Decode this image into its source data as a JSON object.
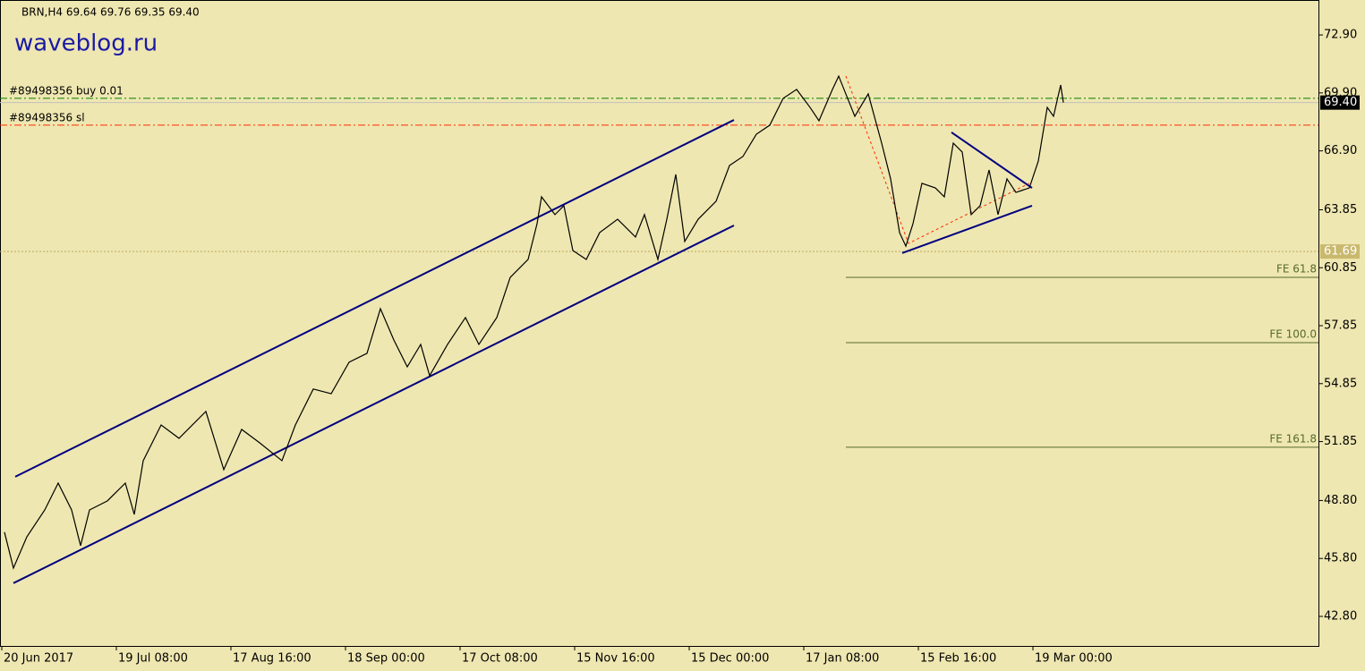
{
  "chart_data": {
    "type": "line",
    "title": "BRN,H4  69.64 69.76 69.35 69.40",
    "watermark": "waveblog.ru",
    "color": "#000000",
    "x": [
      5,
      15,
      30,
      50,
      65,
      80,
      90,
      100,
      120,
      140,
      150,
      160,
      180,
      200,
      230,
      250,
      270,
      290,
      315,
      330,
      350,
      370,
      390,
      410,
      425,
      440,
      455,
      470,
      480,
      500,
      520,
      535,
      555,
      570,
      590,
      600,
      605,
      620,
      630,
      640,
      655,
      670,
      690,
      710,
      720,
      735,
      745,
      755,
      765,
      780,
      800,
      815,
      830,
      845,
      860,
      875,
      890,
      905,
      915,
      930,
      937,
      955,
      970,
      985,
      995,
      1005,
      1012,
      1020,
      1030,
      1045,
      1055,
      1065,
      1075,
      1085,
      1095,
      1105,
      1115,
      1125,
      1135,
      1150,
      1160,
      1170,
      1177,
      1185,
      1188
    ],
    "values": [
      47.16,
      45.3,
      46.92,
      48.31,
      49.7,
      48.31,
      46.46,
      48.31,
      48.78,
      49.7,
      48.08,
      50.86,
      52.71,
      52.02,
      53.41,
      50.4,
      52.48,
      51.79,
      50.86,
      52.71,
      54.57,
      54.33,
      55.96,
      56.42,
      58.73,
      57.11,
      55.72,
      56.88,
      55.26,
      56.88,
      58.27,
      56.88,
      58.27,
      60.35,
      61.28,
      63.13,
      64.52,
      63.6,
      64.06,
      61.74,
      61.28,
      62.67,
      63.36,
      62.44,
      63.6,
      61.28,
      63.36,
      65.68,
      62.21,
      63.36,
      64.29,
      66.14,
      66.61,
      67.76,
      68.23,
      69.62,
      70.08,
      69.15,
      68.46,
      70.08,
      70.77,
      68.69,
      69.85,
      67.3,
      65.45,
      62.67,
      61.97,
      63.13,
      65.22,
      64.98,
      64.52,
      67.3,
      66.84,
      63.6,
      64.06,
      65.91,
      63.6,
      65.45,
      64.75,
      64.98,
      66.37,
      69.15,
      68.69,
      70.31,
      69.4
    ],
    "xlim": [
      0,
      1473
    ],
    "ylim": [
      41.27,
      74.71
    ],
    "xticks": [
      {
        "value": 2,
        "label": "20 Jun 2017"
      },
      {
        "value": 130,
        "label": "19 Jul 08:00"
      },
      {
        "value": 258,
        "label": "17 Aug 16:00"
      },
      {
        "value": 386,
        "label": "18 Sep 00:00"
      },
      {
        "value": 514,
        "label": "17 Oct 08:00"
      },
      {
        "value": 642,
        "label": "15 Nov 16:00"
      },
      {
        "value": 770,
        "label": "15 Dec 00:00"
      },
      {
        "value": 898,
        "label": "17 Jan 08:00"
      },
      {
        "value": 1026,
        "label": "15 Feb 16:00"
      },
      {
        "value": 1154,
        "label": "19 Mar 00:00"
      }
    ],
    "yticks": [
      {
        "value": 72.9,
        "label": "72.90"
      },
      {
        "value": 69.9,
        "label": "69.90"
      },
      {
        "value": 66.9,
        "label": "66.90"
      },
      63.85,
      60.85,
      57.85,
      54.85,
      51.85,
      {
        "value": 48.8,
        "label": "48.80"
      },
      {
        "value": 45.8,
        "label": "45.80"
      },
      {
        "value": 42.8,
        "label": "42.80"
      }
    ],
    "trendlines": [
      {
        "x": [
          17,
          820
        ],
        "y": [
          50.03,
          68.5
        ],
        "color": "#000080"
      },
      {
        "x": [
          15,
          820
        ],
        "y": [
          44.52,
          63.04
        ],
        "color": "#000080"
      },
      {
        "x": [
          1063,
          1153
        ],
        "y": [
          67.86,
          64.98
        ],
        "color": "#000080"
      },
      {
        "x": [
          1008,
          1153
        ],
        "y": [
          61.61,
          64.06
        ],
        "color": "#000080"
      }
    ],
    "zigzag": {
      "x": [
        945,
        1015,
        1150
      ],
      "y": [
        70.77,
        62.11,
        65.22
      ],
      "color": "#ff2a00"
    },
    "levels": [
      {
        "label": "#89498356 buy 0.01",
        "value": 69.62,
        "color": "#008000"
      },
      {
        "label": "#89498356 sl",
        "value": 68.23,
        "color": "#ff2a00"
      }
    ],
    "current_price": {
      "value": 69.4,
      "label": "69.40"
    },
    "level_marker": 61.69,
    "fibo": {
      "x": 945,
      "color": "#556b2f",
      "levels": [
        {
          "label": "FE 61.8",
          "value": 60.35
        },
        {
          "label": "FE 100.0",
          "value": 56.97
        },
        {
          "label": "FE 161.8",
          "value": 51.56
        }
      ]
    }
  }
}
